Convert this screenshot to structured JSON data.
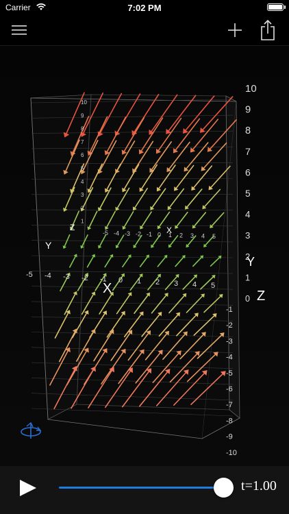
{
  "status_bar": {
    "carrier": "Carrier",
    "time": "7:02 PM"
  },
  "nav": {
    "menu_icon": "hamburger-menu-icon",
    "add_icon": "plus-icon",
    "share_icon": "share-icon"
  },
  "scene": {
    "axis_labels": {
      "x": "X",
      "y": "Y",
      "z": "Z"
    },
    "right_scale": [
      "10",
      "9",
      "8",
      "7",
      "6",
      "5",
      "4",
      "3",
      "2",
      "1",
      "0",
      "-1",
      "-2",
      "-3",
      "-4",
      "-5",
      "-6",
      "-7",
      "-8",
      "-9",
      "-10"
    ],
    "left_scale": [
      "10",
      "9",
      "8",
      "7",
      "6",
      "5",
      "4",
      "3",
      "2",
      "1"
    ],
    "x_ticks": [
      "-5",
      "-4",
      "-3",
      "-2",
      "-1",
      "0",
      "1",
      "2",
      "3",
      "4",
      "5"
    ],
    "rotate_icon": "rotate-3d-icon"
  },
  "controls": {
    "play_icon": "play-icon",
    "t_prefix": "t",
    "t_value": "=1.00",
    "slider_fraction": 1.0
  },
  "colors": {
    "accent": "#1e7de0",
    "warm_top": "#e8543f",
    "mid": "#d6d07a",
    "green": "#6fc94a",
    "warm_bottom": "#f09060"
  }
}
